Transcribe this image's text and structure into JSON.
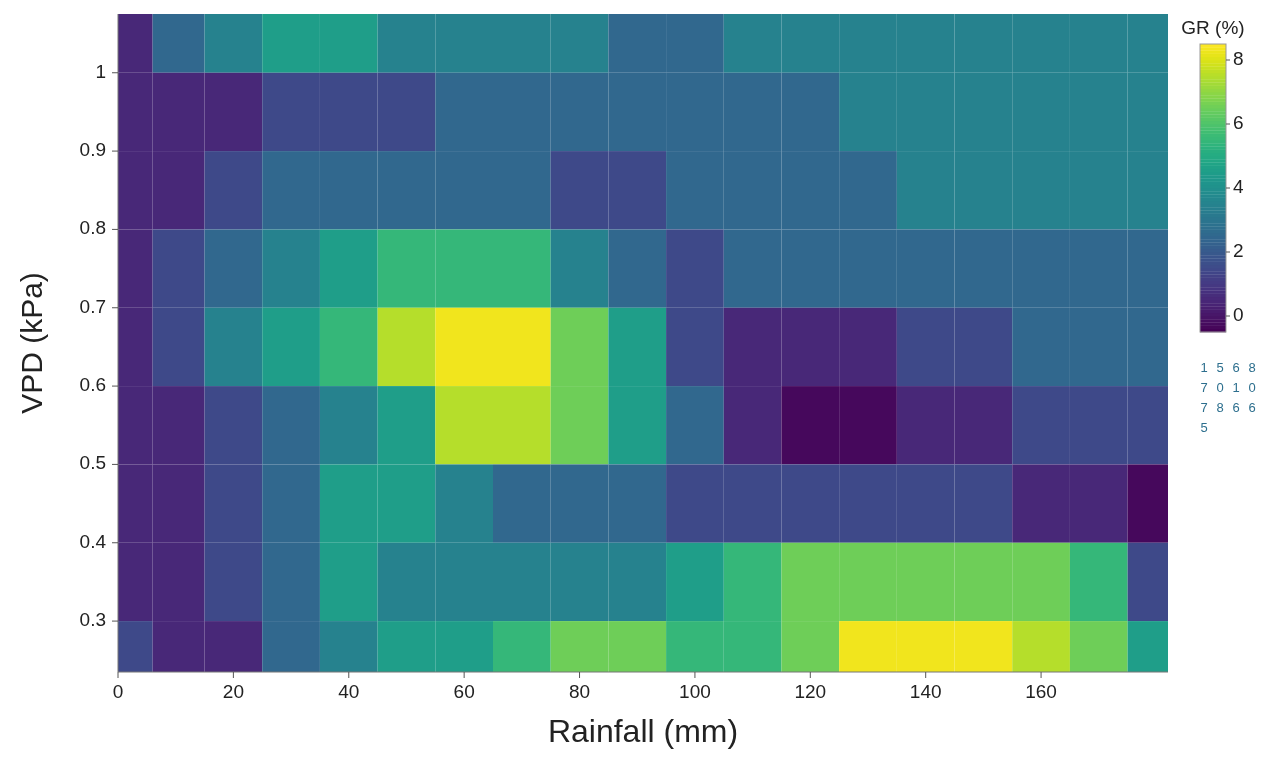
{
  "chart_data": {
    "type": "heatmap",
    "xlabel": "Rainfall (mm)",
    "ylabel": "VPD (kPa)",
    "clabel": "GR (%)",
    "x": [
      2,
      10,
      20,
      30,
      40,
      50,
      60,
      70,
      80,
      90,
      100,
      110,
      120,
      130,
      140,
      150,
      160,
      170,
      180
    ],
    "y": [
      1.05,
      0.95,
      0.85,
      0.75,
      0.65,
      0.55,
      0.45,
      0.35,
      0.25
    ],
    "cells": [
      [
        0.5,
        2.5,
        3.5,
        4.5,
        4.5,
        3.5,
        3.5,
        3.5,
        3.5,
        2.5,
        2.5,
        3.5,
        3.5,
        3.5,
        3.5,
        3.5,
        3.5,
        3.5,
        3.5
      ],
      [
        0.5,
        0.5,
        0.5,
        1.5,
        1.5,
        1.5,
        2.5,
        2.5,
        2.5,
        2.5,
        2.5,
        2.5,
        2.5,
        3.5,
        3.5,
        3.5,
        3.5,
        3.5,
        3.5
      ],
      [
        0.5,
        0.5,
        1.5,
        2.5,
        2.5,
        2.5,
        2.5,
        2.5,
        1.5,
        1.5,
        2.5,
        2.5,
        2.5,
        2.5,
        3.5,
        3.5,
        3.5,
        3.5,
        3.5
      ],
      [
        0.5,
        1.5,
        2.5,
        3.5,
        4.5,
        5.5,
        5.5,
        5.5,
        3.5,
        2.5,
        1.5,
        2.5,
        2.5,
        2.5,
        2.5,
        2.5,
        2.5,
        2.5,
        2.5
      ],
      [
        0.5,
        1.5,
        3.5,
        4.5,
        5.5,
        7.5,
        8.3,
        8.3,
        6.5,
        4.5,
        1.5,
        0.5,
        0.5,
        0.5,
        1.5,
        1.5,
        2.5,
        2.5,
        2.5
      ],
      [
        0.5,
        0.5,
        1.5,
        2.5,
        3.5,
        4.5,
        7.5,
        7.5,
        6.5,
        4.5,
        2.5,
        0.5,
        -0.3,
        -0.3,
        0.5,
        0.5,
        1.5,
        1.5,
        1.5
      ],
      [
        0.5,
        0.5,
        1.5,
        2.5,
        4.5,
        4.5,
        3.5,
        2.5,
        2.5,
        2.5,
        1.5,
        1.5,
        1.5,
        1.5,
        1.5,
        1.5,
        0.5,
        0.5,
        -0.3
      ],
      [
        0.5,
        0.5,
        1.5,
        2.5,
        4.5,
        3.5,
        3.5,
        3.5,
        3.5,
        3.5,
        4.5,
        5.5,
        6.5,
        6.5,
        6.5,
        6.5,
        6.5,
        5.5,
        1.5
      ],
      [
        1.5,
        0.5,
        0.5,
        2.5,
        3.5,
        4.5,
        4.5,
        5.5,
        6.5,
        6.5,
        5.5,
        5.5,
        6.5,
        8.3,
        8.3,
        8.3,
        7.5,
        6.5,
        4.5
      ]
    ],
    "xlim": [
      0,
      182
    ],
    "xticks": [
      0,
      20,
      40,
      60,
      80,
      100,
      120,
      140,
      160
    ],
    "ylim": [
      0.235,
      1.075
    ],
    "yticks": [
      0.3,
      0.4,
      0.5,
      0.6,
      0.7,
      0.8,
      0.9,
      1
    ],
    "clim": [
      -0.5,
      8.5
    ],
    "cticks": [
      0,
      2,
      4,
      6,
      8
    ],
    "annotations": [
      "1",
      "5",
      "6",
      "8",
      "7",
      "0",
      "1",
      "0",
      "7",
      "8",
      "6",
      "6",
      "5"
    ]
  }
}
